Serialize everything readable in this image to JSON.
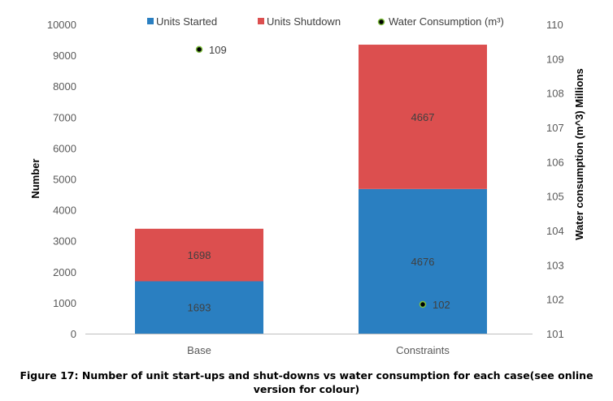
{
  "chart_data": {
    "type": "bar",
    "stacked": true,
    "categories": [
      "Base",
      "Constraints"
    ],
    "series": [
      {
        "name": "Units Started",
        "values": [
          1693,
          4676
        ],
        "color": "#2a7fc1",
        "axis": "left"
      },
      {
        "name": "Units Shutdown",
        "values": [
          1698,
          4667
        ],
        "color": "#dc4f4f",
        "axis": "left"
      }
    ],
    "scatter_series": {
      "name": "Water Consumption (m³)",
      "values": [
        109.27,
        101.85
      ],
      "labels": [
        "109",
        "102"
      ],
      "color": "#000000",
      "edge_color": "#7fbf3f",
      "axis": "right"
    },
    "ylabel": "Number",
    "ylim": [
      0,
      10000
    ],
    "yticks": [
      0,
      1000,
      2000,
      3000,
      4000,
      5000,
      6000,
      7000,
      8000,
      9000,
      10000
    ],
    "y2label": "Water consumption (m^3)  Millions",
    "y2lim": [
      101,
      110
    ],
    "y2ticks": [
      101,
      102,
      103,
      104,
      105,
      106,
      107,
      108,
      109,
      110
    ],
    "grid": false,
    "legend": "top"
  },
  "caption": "Figure 17: Number of unit start-ups and shut-downs vs water consumption for each case(see online version for colour)"
}
